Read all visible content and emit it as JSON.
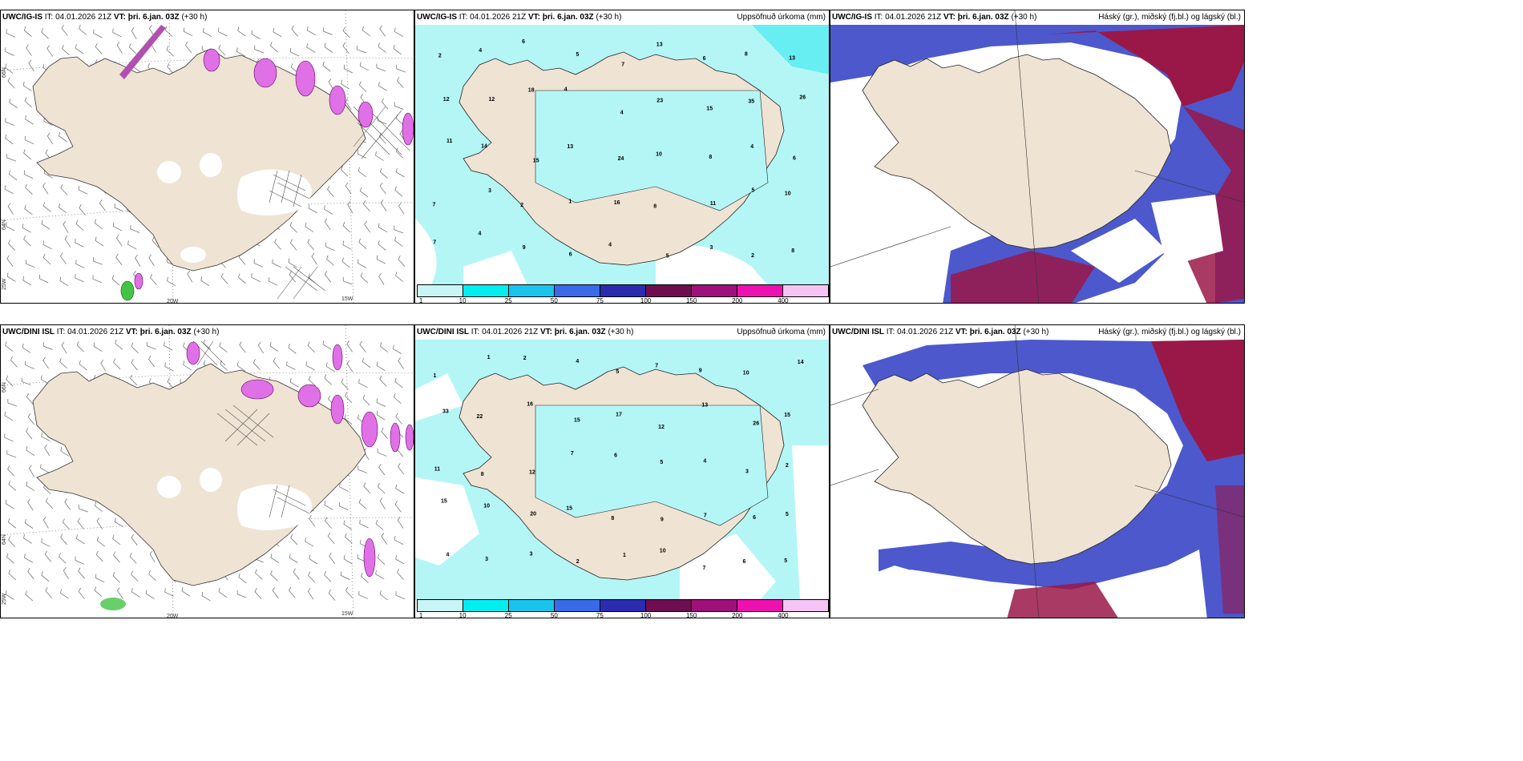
{
  "rows": [
    {
      "panels": [
        {
          "model": "UWC/IG-IS",
          "it_label": "IT:",
          "it": "04.01.2026 21Z",
          "vt_label": "VT:",
          "vt": "þri. 6.jan. 03Z",
          "lead": "(+30 h)",
          "right_title": ""
        },
        {
          "model": "UWC/IG-IS",
          "it_label": "IT:",
          "it": "04.01.2026 21Z",
          "vt_label": "VT:",
          "vt": "þri. 6.jan. 03Z",
          "lead": "(+30 h)",
          "right_title": "Uppsöfnuð úrkoma (mm)"
        },
        {
          "model": "UWC/IG-IS",
          "it_label": "IT:",
          "it": "04.01.2026 21Z",
          "vt_label": "VT:",
          "vt": "þri. 6.jan. 03Z",
          "lead": "(+30 h)",
          "right_title": "Háský (gr.), miðský (fj.bl.) og lágský (bl.)"
        }
      ]
    },
    {
      "panels": [
        {
          "model": "UWC/DINI ISL",
          "it_label": "IT:",
          "it": "04.01.2026 21Z",
          "vt_label": "VT:",
          "vt": "þri. 6.jan. 03Z",
          "lead": "(+30 h)",
          "right_title": ""
        },
        {
          "model": "UWC/DINI ISL",
          "it_label": "IT:",
          "it": "04.01.2026 21Z",
          "vt_label": "VT:",
          "vt": "þri. 6.jan. 03Z",
          "lead": "(+30 h)",
          "right_title": "Uppsöfnuð úrkoma (mm)"
        },
        {
          "model": "UWC/DINI ISL",
          "it_label": "IT:",
          "it": "04.01.2026 21Z",
          "vt_label": "VT:",
          "vt": "þri. 6.jan. 03Z",
          "lead": "(+30 h)",
          "right_title": "Háský (gr.), miðský (fj.bl.) og lágský (bl.)"
        }
      ]
    }
  ],
  "axis_labels": {
    "lat66": "66N",
    "lat64": "64N",
    "lon25": "25W",
    "lon20": "20W",
    "lon15": "15W"
  },
  "colorbar": {
    "labels": [
      "1",
      "10",
      "25",
      "50",
      "75",
      "100",
      "150",
      "200",
      "400"
    ],
    "colors": [
      "#c9f5f6",
      "#00eef0",
      "#19c4ec",
      "#3a6ae8",
      "#2b2bb0",
      "#6e0e50",
      "#a0107a",
      "#ee10b0",
      "#f4c4f4"
    ]
  },
  "colors": {
    "land": "#efe3d4",
    "sea_light": "#b4f6f6",
    "sea_cyan": "#66eef2",
    "cloud_blue": "#4c58cc",
    "cloud_blue_light": "#5aa0ec",
    "cloud_red": "#9a1848",
    "precip_pink": "#e070e6"
  },
  "precip_values_top": [
    "2",
    "4",
    "6",
    "5",
    "7",
    "13",
    "6",
    "8",
    "13",
    "12",
    "12",
    "18",
    "4",
    "4",
    "23",
    "15",
    "35",
    "26",
    "11",
    "14",
    "15",
    "13",
    "24",
    "10",
    "8",
    "4",
    "6",
    "7",
    "3",
    "2",
    "1",
    "16",
    "8",
    "11",
    "5",
    "10",
    "7",
    "4",
    "9",
    "6",
    "4",
    "5",
    "3",
    "2",
    "8"
  ],
  "precip_values_bottom": [
    "1",
    "1",
    "2",
    "4",
    "5",
    "7",
    "9",
    "10",
    "14",
    "33",
    "22",
    "16",
    "15",
    "17",
    "12",
    "13",
    "26",
    "15",
    "11",
    "8",
    "12",
    "7",
    "6",
    "5",
    "4",
    "3",
    "2",
    "15",
    "10",
    "20",
    "15",
    "8",
    "9",
    "7",
    "6",
    "5",
    "4",
    "3",
    "3",
    "2",
    "1",
    "10",
    "7",
    "6",
    "5"
  ]
}
